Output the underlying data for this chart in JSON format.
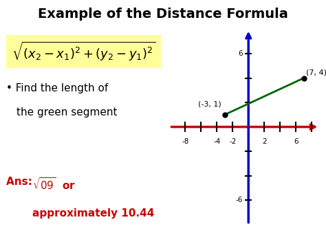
{
  "title": "Example of the Distance Formula",
  "formula": "$\\sqrt{(x_2 - x_1)^2 + (y_2 - y_1)^2}$",
  "formula_bg": "#ffff99",
  "ans_color": "#cc0000",
  "point1": [
    -3,
    1
  ],
  "point2": [
    7,
    4
  ],
  "point1_label": "(-3, 1)",
  "point2_label": "(7, 4)",
  "segment_color": "#006400",
  "axis_color_x": "#cc0000",
  "axis_color_y": "#0000cc",
  "tick_color": "#000000",
  "bg_color": "#ffffff",
  "xlim": [
    -10,
    9
  ],
  "ylim": [
    -8,
    8
  ],
  "x_tick_labeled": [
    -8,
    -4,
    -2,
    2,
    6
  ],
  "x_tick_all": [
    -8,
    -6,
    -4,
    -2,
    2,
    4,
    6,
    8
  ],
  "y_tick_labeled": [
    -6,
    6
  ],
  "y_tick_all": [
    -6,
    -4,
    -2,
    2,
    4,
    6
  ]
}
